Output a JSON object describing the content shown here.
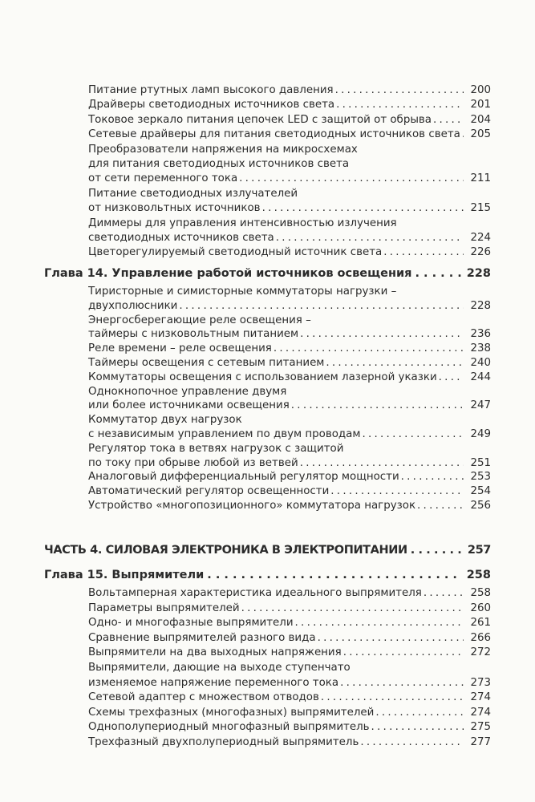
{
  "sections": [
    {
      "id": "ch13-tail",
      "entries": [
        {
          "lines": [
            "Питание ртутных ламп высокого давления"
          ],
          "page": "200"
        },
        {
          "lines": [
            "Драйверы светодиодных источников света"
          ],
          "page": "201"
        },
        {
          "lines": [
            "Токовое зеркало питания цепочек LED с защитой от обрыва"
          ],
          "page": "204"
        },
        {
          "lines": [
            "Сетевые драйверы для питания светодиодных источников света"
          ],
          "page": "205"
        },
        {
          "lines": [
            "Преобразователи напряжения на микросхемах",
            "для питания светодиодных источников света",
            "от сети переменного тока"
          ],
          "page": "211"
        },
        {
          "lines": [
            "Питание светодиодных излучателей",
            "от низковольтных источников"
          ],
          "page": "215"
        },
        {
          "lines": [
            "Диммеры для управления интенсивностью излучения",
            "светодиодных источников света"
          ],
          "page": "224"
        },
        {
          "lines": [
            "Цветорегулируемый светодиодный источник света"
          ],
          "page": "226"
        }
      ]
    },
    {
      "id": "ch14",
      "heading": {
        "title": "Глава 14. Управление работой источников освещения",
        "page": "228"
      },
      "entries": [
        {
          "lines": [
            "Тиристорные и симисторные коммутаторы нагрузки –",
            "двухполюсники"
          ],
          "page": "228"
        },
        {
          "lines": [
            "Энергосберегающие реле освещения –",
            "таймеры с низковольтным питанием"
          ],
          "page": "236"
        },
        {
          "lines": [
            "Реле времени – реле освещения"
          ],
          "page": "238"
        },
        {
          "lines": [
            "Таймеры освещения с сетевым питанием"
          ],
          "page": "240"
        },
        {
          "lines": [
            "Коммутаторы освещения с использованием лазерной указки"
          ],
          "page": "244"
        },
        {
          "lines": [
            "Однокнопочное управление двумя",
            "или более источниками освещения"
          ],
          "page": "247"
        },
        {
          "lines": [
            "Коммутатор двух нагрузок",
            "с независимым управлением по двум проводам"
          ],
          "page": "249"
        },
        {
          "lines": [
            "Регулятор тока в ветвях нагрузок с защитой",
            "по току при обрыве любой из ветвей"
          ],
          "page": "251"
        },
        {
          "lines": [
            "Аналоговый дифференциальный регулятор мощности"
          ],
          "page": "253"
        },
        {
          "lines": [
            "Автоматический регулятор освещенности"
          ],
          "page": "254"
        },
        {
          "lines": [
            "Устройство «многопозиционного» коммутатора нагрузок"
          ],
          "page": "256"
        }
      ]
    },
    {
      "id": "part4",
      "heading": {
        "title": "ЧАСТЬ 4. СИЛОВАЯ ЭЛЕКТРОНИКА В ЭЛЕКТРОПИТАНИИ",
        "page": "257"
      },
      "entries": []
    },
    {
      "id": "ch15",
      "heading": {
        "title": "Глава 15. Выпрямители",
        "page": "258"
      },
      "entries": [
        {
          "lines": [
            "Вольтамперная характеристика идеального выпрямителя"
          ],
          "page": "258"
        },
        {
          "lines": [
            "Параметры выпрямителей"
          ],
          "page": "260"
        },
        {
          "lines": [
            "Одно- и многофазные выпрямители"
          ],
          "page": "261"
        },
        {
          "lines": [
            "Сравнение выпрямителей разного вида"
          ],
          "page": "266"
        },
        {
          "lines": [
            "Выпрямители на два выходных напряжения"
          ],
          "page": "272"
        },
        {
          "lines": [
            "Выпрямители, дающие на выходе ступенчато",
            "изменяемое напряжение переменного тока"
          ],
          "page": "273"
        },
        {
          "lines": [
            "Сетевой адаптер с множеством отводов"
          ],
          "page": "274"
        },
        {
          "lines": [
            "Схемы трехфазных (многофазных) выпрямителей"
          ],
          "page": "274"
        },
        {
          "lines": [
            "Однополупериодный многофазный выпрямитель"
          ],
          "page": "275"
        },
        {
          "lines": [
            "Трехфазный двухполупериодный выпрямитель"
          ],
          "page": "277"
        }
      ]
    }
  ]
}
